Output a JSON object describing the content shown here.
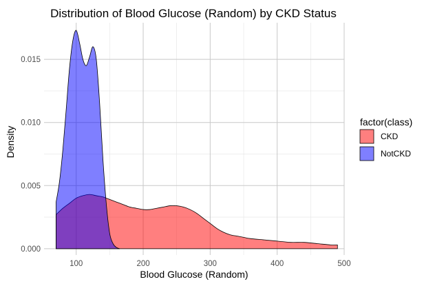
{
  "chart_data": {
    "type": "area",
    "title": "Distribution of Blood Glucose (Random) by CKD Status",
    "xlabel": "Blood Glucose (Random)",
    "ylabel": "Density",
    "xlim": [
      52,
      500
    ],
    "ylim": [
      -0.0005,
      0.0179
    ],
    "xticks": [
      100,
      200,
      300,
      400,
      500
    ],
    "xtick_labels": [
      "100",
      "200",
      "300",
      "400",
      "500"
    ],
    "yticks": [
      0,
      0.005,
      0.01,
      0.015
    ],
    "ytick_labels": [
      "0.000",
      "0.005",
      "0.010",
      "0.015"
    ],
    "grid": true,
    "legend": {
      "title": "factor(class)",
      "position": "right"
    },
    "series": [
      {
        "name": "CKD",
        "color": "#ff0000",
        "opacity": 0.5,
        "x": [
          70,
          80,
          90,
          100,
          110,
          120,
          130,
          140,
          150,
          160,
          170,
          180,
          190,
          200,
          210,
          220,
          230,
          240,
          250,
          260,
          270,
          280,
          290,
          300,
          310,
          320,
          330,
          340,
          350,
          360,
          380,
          400,
          420,
          440,
          460,
          480,
          490
        ],
        "y": [
          0.0027,
          0.0032,
          0.0036,
          0.004,
          0.0042,
          0.0043,
          0.0042,
          0.0041,
          0.0039,
          0.0037,
          0.0035,
          0.0033,
          0.0032,
          0.0031,
          0.0031,
          0.0032,
          0.0033,
          0.0034,
          0.0034,
          0.0033,
          0.0031,
          0.0028,
          0.0024,
          0.002,
          0.0016,
          0.0013,
          0.0011,
          0.001,
          0.0009,
          0.0008,
          0.0007,
          0.0006,
          0.0005,
          0.0005,
          0.0004,
          0.0003,
          0.0003
        ]
      },
      {
        "name": "NotCKD",
        "color": "#0000ff",
        "opacity": 0.5,
        "x": [
          70,
          75,
          80,
          85,
          90,
          95,
          100,
          105,
          110,
          115,
          120,
          125,
          130,
          135,
          140,
          145,
          150,
          155,
          160,
          165
        ],
        "y": [
          0.0037,
          0.0053,
          0.0078,
          0.011,
          0.0143,
          0.0165,
          0.0173,
          0.0163,
          0.015,
          0.0145,
          0.0152,
          0.016,
          0.015,
          0.0115,
          0.007,
          0.0035,
          0.0012,
          0.0004,
          0.0001,
          0.0
        ]
      }
    ]
  }
}
